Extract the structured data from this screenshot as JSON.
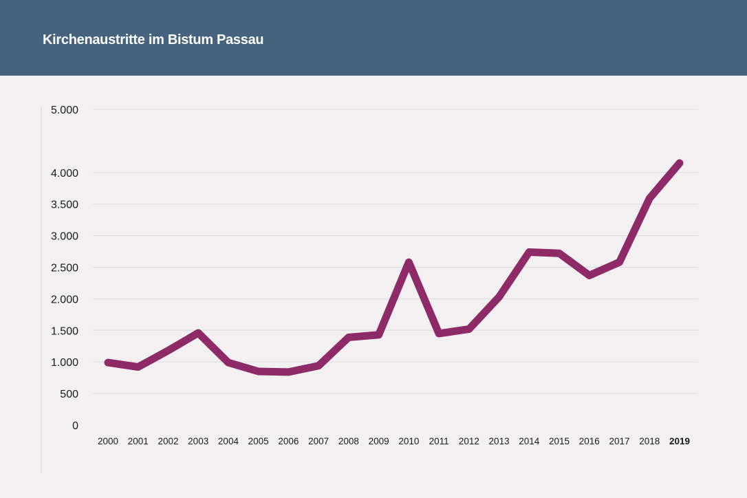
{
  "header": {
    "title": "Kirchenaustritte im Bistum Passau",
    "background": "#45637d"
  },
  "chart_data": {
    "type": "line",
    "title": "Kirchenaustritte im Bistum Passau",
    "xlabel": "",
    "ylabel": "",
    "ylim": [
      0,
      5000
    ],
    "y_ticks": [
      0,
      500,
      1000,
      1500,
      2000,
      2500,
      3000,
      3500,
      4000,
      5000
    ],
    "y_tick_labels": [
      "0",
      "500",
      "1.000",
      "1.500",
      "2.000",
      "2.500",
      "3.000",
      "3.500",
      "4.000",
      "5.000"
    ],
    "grid": true,
    "legend": "none",
    "categories": [
      "2000",
      "2001",
      "2002",
      "2003",
      "2004",
      "2005",
      "2006",
      "2007",
      "2008",
      "2009",
      "2010",
      "2011",
      "2012",
      "2013",
      "2014",
      "2015",
      "2016",
      "2017",
      "2018",
      "2019"
    ],
    "series": [
      {
        "values": [
          990,
          920,
          1180,
          1460,
          990,
          850,
          840,
          940,
          1390,
          1430,
          2580,
          1450,
          1520,
          2030,
          2740,
          2720,
          2370,
          2580,
          3590,
          4150
        ],
        "color": "#8e2a68"
      }
    ]
  }
}
